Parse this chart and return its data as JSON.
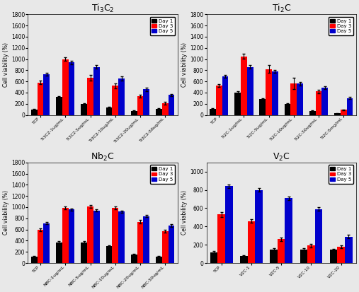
{
  "subplots": [
    {
      "title": "Ti$_3$C$_2$",
      "ylabel": "Cell viability (%)",
      "ylim": [
        0,
        1800
      ],
      "yticks": [
        0,
        200,
        400,
        600,
        800,
        1000,
        1200,
        1400,
        1600,
        1800
      ],
      "categories": [
        "TCP",
        "Ti3C2-1ug/mL",
        "Ti3C2-5ug/mL",
        "Ti3C2-10ug/mL",
        "Ti3C2-20ug/mL",
        "Ti3C2-50ug/mL"
      ],
      "day1": [
        100,
        320,
        200,
        130,
        70,
        110
      ],
      "day3": [
        580,
        1000,
        660,
        520,
        340,
        210
      ],
      "day5": [
        730,
        940,
        860,
        650,
        460,
        360
      ],
      "day1_err": [
        10,
        20,
        15,
        12,
        8,
        10
      ],
      "day3_err": [
        30,
        30,
        50,
        40,
        25,
        20
      ],
      "day5_err": [
        25,
        30,
        30,
        35,
        30,
        20
      ]
    },
    {
      "title": "Ti$_2$C",
      "ylabel": "Cell viability (%)",
      "ylim": [
        0,
        1800
      ],
      "yticks": [
        0,
        200,
        400,
        600,
        800,
        1000,
        1200,
        1400,
        1600,
        1800
      ],
      "categories": [
        "TCP",
        "Ti2C-1ug/mL",
        "Ti2C-5ug/mL",
        "Ti2C-10ug/mL",
        "Ti2C-50ug/mL",
        "Ti2C-5mg/mL"
      ],
      "day1": [
        110,
        400,
        280,
        200,
        70,
        30
      ],
      "day3": [
        530,
        1050,
        820,
        560,
        420,
        90
      ],
      "day5": [
        690,
        860,
        780,
        560,
        490,
        300
      ],
      "day1_err": [
        10,
        30,
        20,
        15,
        8,
        5
      ],
      "day3_err": [
        25,
        40,
        70,
        100,
        30,
        10
      ],
      "day5_err": [
        25,
        30,
        30,
        30,
        25,
        20
      ]
    },
    {
      "title": "Nb$_2$C",
      "ylabel": "Cell viability (%)",
      "ylim": [
        0,
        1800
      ],
      "yticks": [
        0,
        200,
        400,
        600,
        800,
        1000,
        1200,
        1400,
        1600,
        1800
      ],
      "categories": [
        "TCP",
        "NBC-1ug/mL",
        "NBC-5ug/mL",
        "NBC-10ug/mL",
        "NBC-20ug/mL",
        "NBC-50ug/mL"
      ],
      "day1": [
        120,
        370,
        370,
        300,
        155,
        120
      ],
      "day3": [
        590,
        990,
        1010,
        990,
        740,
        570
      ],
      "day5": [
        710,
        960,
        940,
        920,
        840,
        670
      ],
      "day1_err": [
        10,
        20,
        20,
        18,
        15,
        12
      ],
      "day3_err": [
        25,
        25,
        25,
        25,
        35,
        25
      ],
      "day5_err": [
        20,
        20,
        20,
        20,
        20,
        20
      ]
    },
    {
      "title": "V$_2$C",
      "ylabel": "Cell viability (%)",
      "ylim": [
        0,
        1100
      ],
      "yticks": [
        0,
        200,
        400,
        600,
        800,
        1000
      ],
      "categories": [
        "TCP",
        "V2C-1",
        "V2C-5",
        "V2C-10",
        "V2C-20"
      ],
      "day1": [
        120,
        80,
        150,
        150,
        145
      ],
      "day3": [
        530,
        460,
        260,
        190,
        175
      ],
      "day5": [
        840,
        800,
        710,
        590,
        290
      ],
      "day1_err": [
        10,
        8,
        12,
        12,
        12
      ],
      "day3_err": [
        25,
        20,
        20,
        18,
        15
      ],
      "day5_err": [
        20,
        20,
        20,
        20,
        20
      ]
    }
  ],
  "bar_colors": {
    "day1": "#000000",
    "day3": "#ff0000",
    "day5": "#0000cc"
  },
  "legend_labels": [
    "Day 1",
    "Day 3",
    "Day 5"
  ],
  "figsize": [
    5.07,
    4.13
  ],
  "dpi": 100,
  "bg_color": "#e8e8e8"
}
